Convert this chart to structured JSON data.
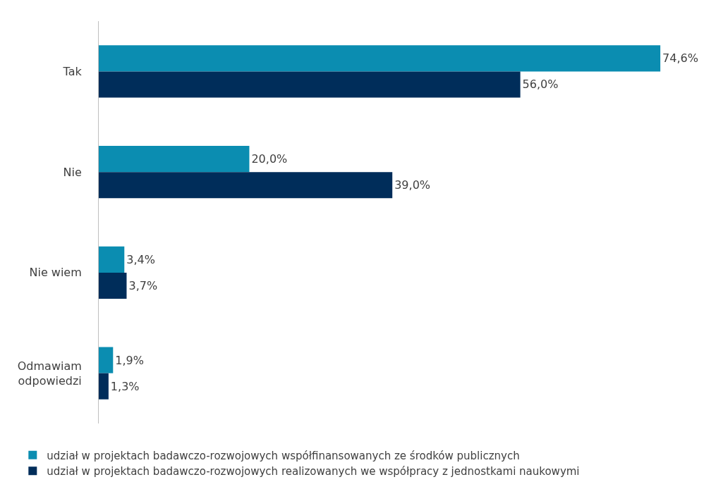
{
  "chart_data": {
    "type": "bar",
    "orientation": "horizontal",
    "categories": [
      "Tak",
      "Nie",
      "Nie wiem",
      "Odmawiam odpowiedzi"
    ],
    "series": [
      {
        "name": "udział w projektach badawczo-rozwojowych współfinansowanych ze środków publicznych",
        "color": "#0b8db1",
        "values": [
          74.6,
          20.0,
          3.4,
          1.9
        ],
        "value_labels": [
          "74,6%",
          "20,0%",
          "3,4%",
          "1,9%"
        ]
      },
      {
        "name": "udział w projektach badawczo-rozwojowych realizowanych we współpracy z jednostkami naukowymi",
        "color": "#002d5a",
        "values": [
          56.0,
          39.0,
          3.7,
          1.3
        ],
        "value_labels": [
          "56,0%",
          "39,0%",
          "3,7%",
          "1,3%"
        ]
      }
    ],
    "legend": "bottom",
    "tick_labels": "y"
  }
}
